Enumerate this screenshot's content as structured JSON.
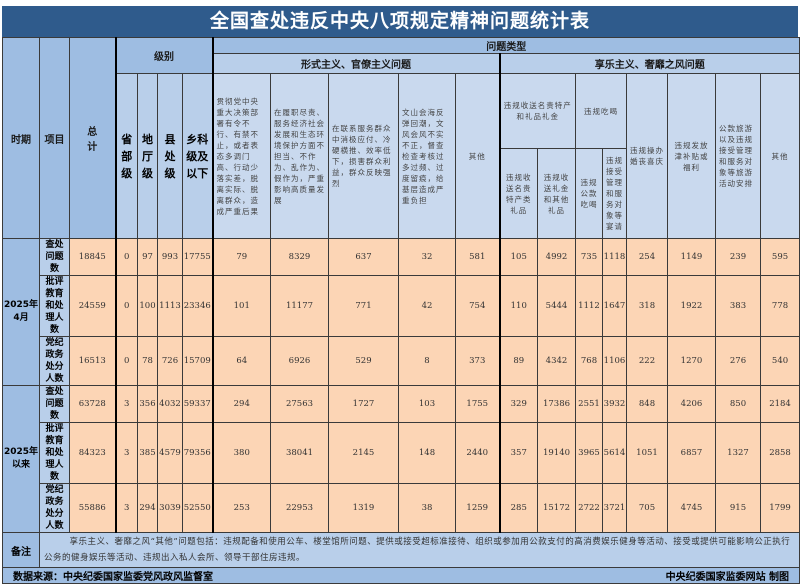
{
  "title": "全国查处违反中央八项规定精神问题统计表",
  "header": {
    "period": "时期",
    "item": "项目",
    "total": "总计",
    "level": "级别",
    "levels": [
      "省部级",
      "地厅级",
      "县处级",
      "乡科级及以下"
    ],
    "problem_type": "问题类型",
    "formalism": "形式主义、官僚主义问题",
    "formalism_cols": [
      "贯彻党中央重大决策部署有令不行、有禁不止，或者表态多调门高、行动少落实差，脱离实际、脱离群众，造成严重后果",
      "在履职尽责、服务经济社会发展和生态环境保护方面不担当、不作为、乱作为、假作为，严重影响高质量发展",
      "在联系服务群众中消极应付、冷硬横推、效率低下，损害群众利益，群众反映强烈",
      "文山会海反弹回潮，文风会风不实不正，督查检查考核过多过频、过度留痕，给基层造成严重负担",
      "其他"
    ],
    "hedonism": "享乐主义、奢靡之风问题",
    "gifts_group": "违规收送名贵特产和礼品礼金",
    "gifts_cols": [
      "违规收送名贵特产类礼品",
      "违规收送礼金和其他礼品"
    ],
    "dining_group": "违规吃喝",
    "dining_cols": [
      "违规公款吃喝",
      "违规接受管理和服务对象等宴请"
    ],
    "weddings": "违规操办婚丧喜庆",
    "subsidies": "违规发放津补贴或福利",
    "travel": "公款旅游以及违规接受管理和服务对象等旅游活动安排",
    "other": "其他"
  },
  "periods": [
    {
      "label": "2025年4月",
      "rows": [
        {
          "item": "查处问题数",
          "values": [
            18845,
            0,
            97,
            993,
            17755,
            79,
            8329,
            637,
            32,
            581,
            105,
            4992,
            735,
            1118,
            254,
            1149,
            239,
            595
          ]
        },
        {
          "item": "批评教育和处理人数",
          "values": [
            24559,
            0,
            100,
            1113,
            23346,
            101,
            11177,
            771,
            42,
            754,
            110,
            5444,
            1112,
            1647,
            318,
            1922,
            383,
            778
          ]
        },
        {
          "item": "党纪政务处分人数",
          "values": [
            16513,
            0,
            78,
            726,
            15709,
            64,
            6926,
            529,
            8,
            373,
            89,
            4342,
            768,
            1106,
            222,
            1270,
            276,
            540
          ]
        }
      ]
    },
    {
      "label": "2025年以来",
      "rows": [
        {
          "item": "查处问题数",
          "values": [
            63728,
            3,
            356,
            4032,
            59337,
            294,
            27563,
            1727,
            103,
            1755,
            329,
            17386,
            2551,
            3932,
            848,
            4206,
            850,
            2184
          ]
        },
        {
          "item": "批评教育和处理人数",
          "values": [
            84323,
            3,
            385,
            4579,
            79356,
            380,
            38041,
            2145,
            148,
            2440,
            357,
            19140,
            3965,
            5614,
            1051,
            6857,
            1327,
            2858
          ]
        },
        {
          "item": "党纪政务处分人数",
          "values": [
            55886,
            3,
            294,
            3039,
            52550,
            253,
            22953,
            1319,
            38,
            1259,
            285,
            15172,
            2722,
            3721,
            705,
            4745,
            915,
            1799
          ]
        }
      ]
    }
  ],
  "notes": {
    "label": "备注",
    "text": "享乐主义、奢靡之风“其他”问题包括：违规配备和使用公车、楼堂馆所问题、提供或接受超标准接待、组织或参加用公款支付的高消费娱乐健身等活动、接受或提供可能影响公正执行公务的健身娱乐等活动、违规出入私人会所、领导干部住房违规。"
  },
  "footer": {
    "source": "数据来源：中央纪委国家监委党风政风监督室",
    "credit": "中央纪委国家监委网站 制图"
  },
  "colors": {
    "title_bg": "#2f5b8c",
    "header_bg": "#9ebde2",
    "subheader_bg": "#b9cfea",
    "cell_bg": "#fcd5b5"
  }
}
